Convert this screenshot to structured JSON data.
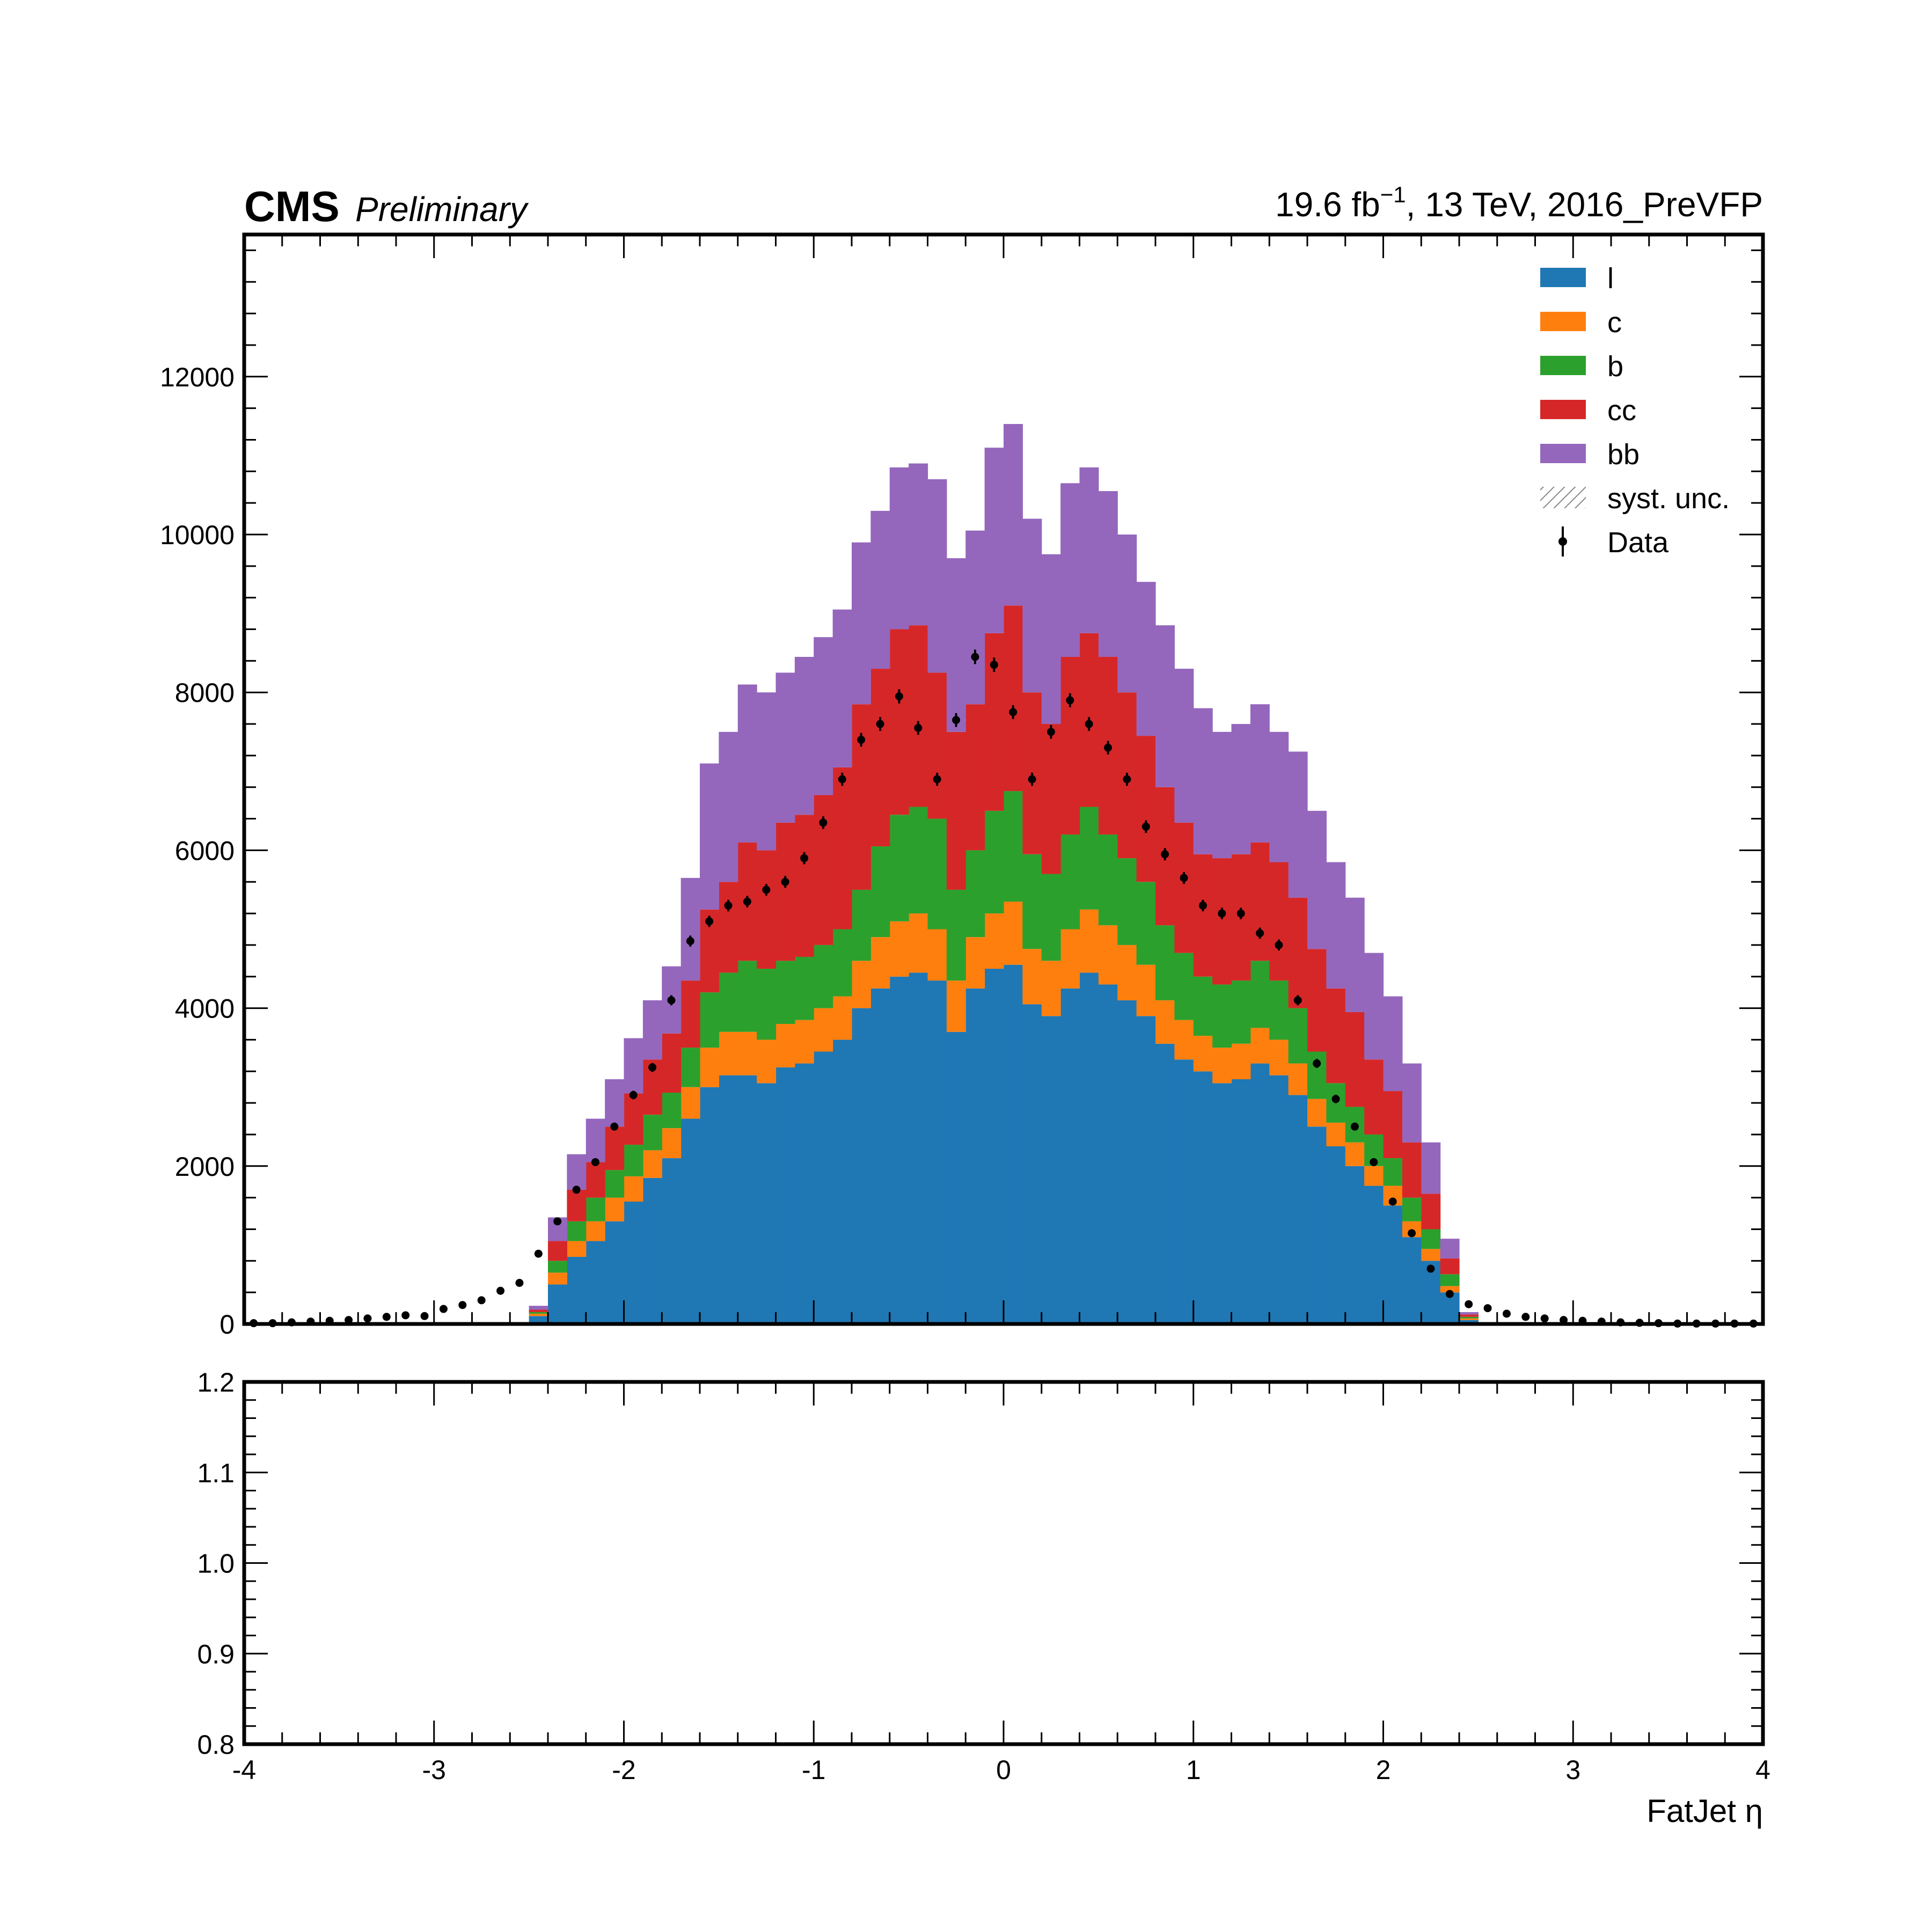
{
  "header": {
    "experiment": "CMS",
    "status": "Preliminary",
    "lumi_prefix": "19.6 fb",
    "lumi_exp": "−1",
    "lumi_suffix": ", 13 TeV, 2016_PreVFP"
  },
  "chart_data": {
    "type": "bar",
    "stacked": true,
    "xlabel": "FatJet η",
    "ylabel": "",
    "xlim": [
      -4,
      4
    ],
    "ylim": [
      0,
      13800
    ],
    "ratio_ylim": [
      0.8,
      1.2
    ],
    "x_ticks": [
      "-4",
      "-3",
      "-2",
      "-1",
      "0",
      "1",
      "2",
      "3",
      "4"
    ],
    "y_ticks": [
      "0",
      "2000",
      "4000",
      "6000",
      "8000",
      "10000",
      "12000"
    ],
    "ratio_ticks": [
      "0.8",
      "0.9",
      "1.0",
      "1.1",
      "1.2"
    ],
    "bin_width": 0.1,
    "bin_edges_start": -2.5,
    "legend_position": "top-right",
    "legend": [
      "l",
      "c",
      "b",
      "cc",
      "bb",
      "syst. unc.",
      "Data"
    ],
    "series": [
      {
        "name": "l",
        "color": "#1f77b4",
        "values": [
          100,
          500,
          850,
          1050,
          1300,
          1550,
          1850,
          2100,
          2600,
          3000,
          3150,
          3150,
          3050,
          3250,
          3300,
          3450,
          3600,
          4000,
          4250,
          4400,
          4450,
          4350,
          3700,
          4250,
          4500,
          4550,
          4050,
          3900,
          4250,
          4450,
          4300,
          4100,
          3900,
          3550,
          3350,
          3200,
          3050,
          3100,
          3300,
          3150,
          2900,
          2500,
          2250,
          2000,
          1750,
          1500,
          1100,
          800,
          400,
          50
        ]
      },
      {
        "name": "c",
        "color": "#ff7f0e",
        "values": [
          30,
          150,
          200,
          250,
          300,
          320,
          350,
          380,
          400,
          500,
          550,
          550,
          550,
          550,
          550,
          550,
          550,
          600,
          650,
          700,
          750,
          650,
          650,
          650,
          700,
          800,
          700,
          700,
          750,
          800,
          750,
          700,
          650,
          550,
          500,
          450,
          450,
          450,
          450,
          450,
          400,
          350,
          300,
          300,
          250,
          250,
          200,
          150,
          80,
          20
        ]
      },
      {
        "name": "b",
        "color": "#2ca02c",
        "values": [
          20,
          150,
          250,
          300,
          350,
          400,
          450,
          450,
          500,
          700,
          750,
          900,
          900,
          800,
          800,
          800,
          850,
          900,
          1150,
          1350,
          1350,
          1400,
          1150,
          1100,
          1300,
          1400,
          1200,
          1100,
          1200,
          1300,
          1150,
          1100,
          1050,
          950,
          850,
          750,
          800,
          800,
          850,
          750,
          700,
          600,
          500,
          450,
          400,
          350,
          300,
          250,
          150,
          20
        ]
      },
      {
        "name": "cc",
        "color": "#d62728",
        "values": [
          30,
          250,
          400,
          450,
          550,
          650,
          700,
          750,
          850,
          1050,
          1150,
          1500,
          1500,
          1750,
          1800,
          1900,
          2050,
          2350,
          2250,
          2350,
          2300,
          1850,
          2000,
          1850,
          2250,
          2350,
          2050,
          1900,
          2250,
          2200,
          2250,
          2100,
          1850,
          1750,
          1650,
          1550,
          1600,
          1600,
          1500,
          1500,
          1400,
          1300,
          1200,
          1200,
          950,
          850,
          700,
          450,
          200,
          30
        ]
      },
      {
        "name": "bb",
        "color": "#9467bd",
        "values": [
          50,
          300,
          450,
          550,
          600,
          700,
          750,
          850,
          1300,
          1850,
          1900,
          2000,
          2000,
          1900,
          2000,
          2000,
          2000,
          2050,
          2000,
          2050,
          2050,
          2450,
          2200,
          2200,
          2350,
          2300,
          2200,
          2150,
          2200,
          2100,
          2100,
          2000,
          1950,
          2050,
          1950,
          1850,
          1600,
          1650,
          1750,
          1650,
          1850,
          1750,
          1600,
          1450,
          1350,
          1200,
          1000,
          650,
          250,
          30
        ]
      }
    ],
    "data": {
      "name": "Data",
      "x": [
        -3.95,
        -3.85,
        -3.75,
        -3.65,
        -3.55,
        -3.45,
        -3.35,
        -3.25,
        -3.15,
        -3.05,
        -2.95,
        -2.85,
        -2.75,
        -2.65,
        -2.55,
        -2.45,
        -2.35,
        -2.25,
        -2.15,
        -2.05,
        -1.95,
        -1.85,
        -1.75,
        -1.65,
        -1.55,
        -1.45,
        -1.35,
        -1.25,
        -1.15,
        -1.05,
        -0.95,
        -0.85,
        -0.75,
        -0.65,
        -0.55,
        -0.45,
        -0.35,
        -0.25,
        -0.15,
        -0.05,
        0.05,
        0.15,
        0.25,
        0.35,
        0.45,
        0.55,
        0.65,
        0.75,
        0.85,
        0.95,
        1.05,
        1.15,
        1.25,
        1.35,
        1.45,
        1.55,
        1.65,
        1.75,
        1.85,
        1.95,
        2.05,
        2.15,
        2.25,
        2.35,
        2.45,
        2.55,
        2.65,
        2.75,
        2.85,
        2.95,
        3.05,
        3.15,
        3.25,
        3.35,
        3.45,
        3.55,
        3.65,
        3.75,
        3.85,
        3.95
      ],
      "y": [
        10,
        10,
        20,
        30,
        40,
        50,
        70,
        90,
        110,
        100,
        190,
        240,
        300,
        420,
        520,
        890,
        1300,
        1700,
        2050,
        2500,
        2900,
        3250,
        4100,
        4850,
        5100,
        5300,
        5350,
        5500,
        5600,
        5900,
        6350,
        6900,
        7400,
        7600,
        7950,
        7550,
        6900,
        7650,
        8450,
        8350,
        7750,
        6900,
        7500,
        7900,
        7600,
        7300,
        6900,
        6300,
        5950,
        5650,
        5300,
        5200,
        5200,
        4950,
        4800,
        4100,
        3300,
        2850,
        2500,
        2050,
        1550,
        1150,
        700,
        380,
        250,
        200,
        130,
        90,
        70,
        50,
        40,
        30,
        20,
        15,
        10,
        5,
        5,
        5,
        5,
        5
      ]
    }
  }
}
